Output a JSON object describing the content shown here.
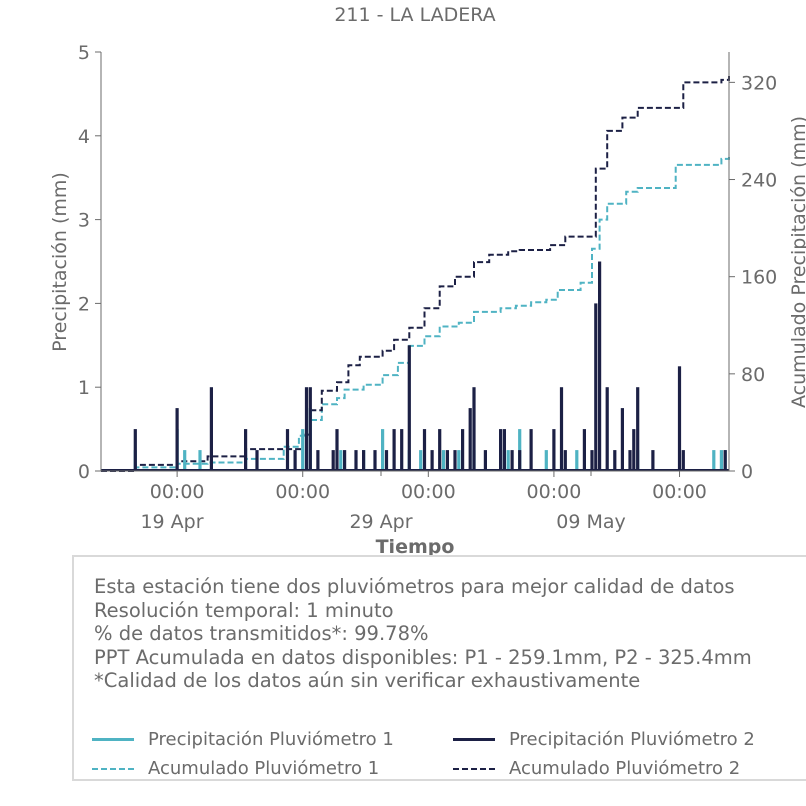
{
  "chart_data": {
    "type": "bar",
    "title": "211 - LA LADERA",
    "xlabel": "Tiempo",
    "ylabel": "Precipitación (mm)",
    "ylabel_right": "Acumulado Precipitación (mm)",
    "ylim": [
      0,
      5
    ],
    "ylim_right": [
      0,
      345
    ],
    "yticks": [
      "0",
      "1",
      "2",
      "3",
      "4",
      "5"
    ],
    "yticks_right": [
      "0",
      "80",
      "160",
      "240",
      "320"
    ],
    "xlim": [
      "2025-04-13 00:00",
      "2025-05-24 06:00"
    ],
    "xticks": [
      {
        "t": "2025-04-18 00:00",
        "time": "00:00",
        "date": "19 Apr"
      },
      {
        "t": "2025-04-26 06:00",
        "time": "00:00",
        "date": ""
      },
      {
        "t": "2025-05-04 12:00",
        "time": "00:00",
        "date": "29 Apr"
      },
      {
        "t": "2025-05-12 18:00",
        "time": "00:00",
        "date": "09 May"
      },
      {
        "t": "2025-05-21 00:00",
        "time": "00:00",
        "date": ""
      }
    ],
    "series": [
      {
        "name": "Precipitación Pluviómetro 1",
        "kind": "bar",
        "color": "#4fb3c3",
        "points": [
          [
            "2025-04-15 06:00",
            0.25
          ],
          [
            "2025-04-18 00:00",
            0.5
          ],
          [
            "2025-04-18 12:00",
            0.25
          ],
          [
            "2025-04-19 12:00",
            0.25
          ],
          [
            "2025-04-22 12:00",
            0.25
          ],
          [
            "2025-04-26 06:00",
            0.5
          ],
          [
            "2025-04-26 18:00",
            0.75
          ],
          [
            "2025-04-28 18:00",
            0.25
          ],
          [
            "2025-04-30 06:00",
            0.25
          ],
          [
            "2025-05-01 12:00",
            0.5
          ],
          [
            "2025-05-03 06:00",
            0.25
          ],
          [
            "2025-05-04 00:00",
            0.25
          ],
          [
            "2025-05-05 12:00",
            0.25
          ],
          [
            "2025-05-06 12:00",
            0.25
          ],
          [
            "2025-05-07 12:00",
            0.25
          ],
          [
            "2025-05-09 06:00",
            0.25
          ],
          [
            "2025-05-09 18:00",
            0.25
          ],
          [
            "2025-05-10 12:00",
            0.5
          ],
          [
            "2025-05-12 06:00",
            0.25
          ],
          [
            "2025-05-14 06:00",
            0.25
          ],
          [
            "2025-05-18 06:00",
            0.25
          ],
          [
            "2025-05-23 06:00",
            0.25
          ],
          [
            "2025-05-23 18:00",
            0.25
          ],
          [
            "2025-05-24 00:00",
            0.25
          ]
        ]
      },
      {
        "name": "Precipitación Pluviómetro 2",
        "kind": "bar",
        "color": "#1c2045",
        "points": [
          [
            "2025-04-15 06:00",
            0.5
          ],
          [
            "2025-04-18 00:00",
            0.75
          ],
          [
            "2025-04-20 06:00",
            1.0
          ],
          [
            "2025-04-22 12:00",
            0.5
          ],
          [
            "2025-04-23 06:00",
            0.25
          ],
          [
            "2025-04-25 06:00",
            0.5
          ],
          [
            "2025-04-25 18:00",
            0.25
          ],
          [
            "2025-04-26 12:00",
            1.0
          ],
          [
            "2025-04-26 18:00",
            1.0
          ],
          [
            "2025-04-27 06:00",
            0.25
          ],
          [
            "2025-04-28 06:00",
            0.25
          ],
          [
            "2025-04-28 12:00",
            0.5
          ],
          [
            "2025-04-29 00:00",
            0.25
          ],
          [
            "2025-04-29 18:00",
            0.25
          ],
          [
            "2025-04-30 06:00",
            0.25
          ],
          [
            "2025-05-01 00:00",
            0.25
          ],
          [
            "2025-05-01 18:00",
            0.25
          ],
          [
            "2025-05-02 06:00",
            0.5
          ],
          [
            "2025-05-02 18:00",
            0.5
          ],
          [
            "2025-05-03 06:00",
            1.5
          ],
          [
            "2025-05-04 06:00",
            0.5
          ],
          [
            "2025-05-04 18:00",
            0.25
          ],
          [
            "2025-05-05 06:00",
            0.5
          ],
          [
            "2025-05-05 18:00",
            0.25
          ],
          [
            "2025-05-06 06:00",
            0.25
          ],
          [
            "2025-05-06 18:00",
            0.5
          ],
          [
            "2025-05-07 06:00",
            0.75
          ],
          [
            "2025-05-07 12:00",
            1.0
          ],
          [
            "2025-05-08 06:00",
            0.25
          ],
          [
            "2025-05-09 06:00",
            0.5
          ],
          [
            "2025-05-09 12:00",
            0.5
          ],
          [
            "2025-05-10 00:00",
            0.25
          ],
          [
            "2025-05-10 12:00",
            0.25
          ],
          [
            "2025-05-11 06:00",
            0.5
          ],
          [
            "2025-05-12 18:00",
            0.5
          ],
          [
            "2025-05-13 06:00",
            1.0
          ],
          [
            "2025-05-13 12:00",
            0.25
          ],
          [
            "2025-05-14 18:00",
            0.5
          ],
          [
            "2025-05-15 06:00",
            0.25
          ],
          [
            "2025-05-15 12:00",
            2.0
          ],
          [
            "2025-05-15 18:00",
            2.5
          ],
          [
            "2025-05-16 06:00",
            1.0
          ],
          [
            "2025-05-16 18:00",
            0.25
          ],
          [
            "2025-05-17 06:00",
            0.75
          ],
          [
            "2025-05-17 18:00",
            0.25
          ],
          [
            "2025-05-18 00:00",
            0.5
          ],
          [
            "2025-05-18 06:00",
            1.0
          ],
          [
            "2025-05-19 06:00",
            0.25
          ],
          [
            "2025-05-21 00:00",
            1.25
          ],
          [
            "2025-05-21 06:00",
            0.25
          ],
          [
            "2025-05-24 00:00",
            0.25
          ]
        ]
      },
      {
        "name": "Acumulado Pluviómetro 1",
        "kind": "step-dashed",
        "axis": "right",
        "color": "#4fb3c3",
        "points": [
          [
            "2025-04-13 00:00",
            0
          ],
          [
            "2025-04-15 06:00",
            3
          ],
          [
            "2025-04-18 00:00",
            6
          ],
          [
            "2025-04-20 00:00",
            7
          ],
          [
            "2025-04-22 12:00",
            10
          ],
          [
            "2025-04-25 00:00",
            20
          ],
          [
            "2025-04-26 00:00",
            29
          ],
          [
            "2025-04-26 18:00",
            42
          ],
          [
            "2025-04-27 12:00",
            55
          ],
          [
            "2025-04-28 12:00",
            60
          ],
          [
            "2025-04-29 00:00",
            67
          ],
          [
            "2025-04-30 06:00",
            71
          ],
          [
            "2025-05-01 12:00",
            79
          ],
          [
            "2025-05-02 12:00",
            89
          ],
          [
            "2025-05-03 06:00",
            103
          ],
          [
            "2025-05-04 06:00",
            111
          ],
          [
            "2025-05-05 06:00",
            119
          ],
          [
            "2025-05-06 12:00",
            122
          ],
          [
            "2025-05-07 12:00",
            131
          ],
          [
            "2025-05-09 06:00",
            134
          ],
          [
            "2025-05-10 06:00",
            136
          ],
          [
            "2025-05-11 06:00",
            139
          ],
          [
            "2025-05-12 06:00",
            141
          ],
          [
            "2025-05-13 00:00",
            149
          ],
          [
            "2025-05-14 12:00",
            155
          ],
          [
            "2025-05-15 06:00",
            183
          ],
          [
            "2025-05-15 18:00",
            207
          ],
          [
            "2025-05-16 06:00",
            220
          ],
          [
            "2025-05-17 12:00",
            230
          ],
          [
            "2025-05-18 06:00",
            233
          ],
          [
            "2025-05-20 18:00",
            252
          ],
          [
            "2025-05-23 18:00",
            257
          ],
          [
            "2025-05-24 06:00",
            259.1
          ]
        ]
      },
      {
        "name": "Acumulado Pluviómetro 2",
        "kind": "step-dashed",
        "axis": "right",
        "color": "#1c2045",
        "points": [
          [
            "2025-04-13 00:00",
            0
          ],
          [
            "2025-04-15 06:00",
            5
          ],
          [
            "2025-04-18 00:00",
            8
          ],
          [
            "2025-04-20 00:00",
            12
          ],
          [
            "2025-04-22 12:00",
            18
          ],
          [
            "2025-04-26 06:00",
            30
          ],
          [
            "2025-04-26 18:00",
            50
          ],
          [
            "2025-04-27 12:00",
            66
          ],
          [
            "2025-04-28 12:00",
            73
          ],
          [
            "2025-04-29 06:00",
            87
          ],
          [
            "2025-04-30 00:00",
            94
          ],
          [
            "2025-05-01 12:00",
            99
          ],
          [
            "2025-05-02 06:00",
            108
          ],
          [
            "2025-05-03 06:00",
            118
          ],
          [
            "2025-05-04 06:00",
            134
          ],
          [
            "2025-05-05 06:00",
            152
          ],
          [
            "2025-05-06 06:00",
            160
          ],
          [
            "2025-05-07 12:00",
            172
          ],
          [
            "2025-05-08 12:00",
            178
          ],
          [
            "2025-05-09 18:00",
            181
          ],
          [
            "2025-05-10 12:00",
            182
          ],
          [
            "2025-05-12 12:00",
            186
          ],
          [
            "2025-05-13 12:00",
            193
          ],
          [
            "2025-05-15 12:00",
            249
          ],
          [
            "2025-05-16 06:00",
            280
          ],
          [
            "2025-05-17 06:00",
            291
          ],
          [
            "2025-05-18 06:00",
            299
          ],
          [
            "2025-05-21 06:00",
            320
          ],
          [
            "2025-05-23 18:00",
            322
          ],
          [
            "2025-05-24 06:00",
            325.4
          ]
        ]
      }
    ]
  },
  "info": {
    "lines": [
      "Esta estación tiene dos pluviómetros para mejor calidad de datos",
      "Resolución temporal: 1 minuto",
      "% de datos transmitidos*: 99.78%",
      "PPT Acumulada en datos disponibles: P1 - 259.1mm, P2 - 325.4mm",
      "*Calidad de los datos aún sin verificar exhaustivamente"
    ]
  },
  "legend": [
    {
      "label": "Precipitación Pluviómetro 1",
      "color": "#4fb3c3",
      "style": "solid"
    },
    {
      "label": "Precipitación Pluviómetro 2",
      "color": "#1c2045",
      "style": "solid"
    },
    {
      "label": "Acumulado Pluviómetro 1",
      "color": "#4fb3c3",
      "style": "dashed"
    },
    {
      "label": "Acumulado Pluviómetro 2",
      "color": "#1c2045",
      "style": "dashed"
    }
  ]
}
